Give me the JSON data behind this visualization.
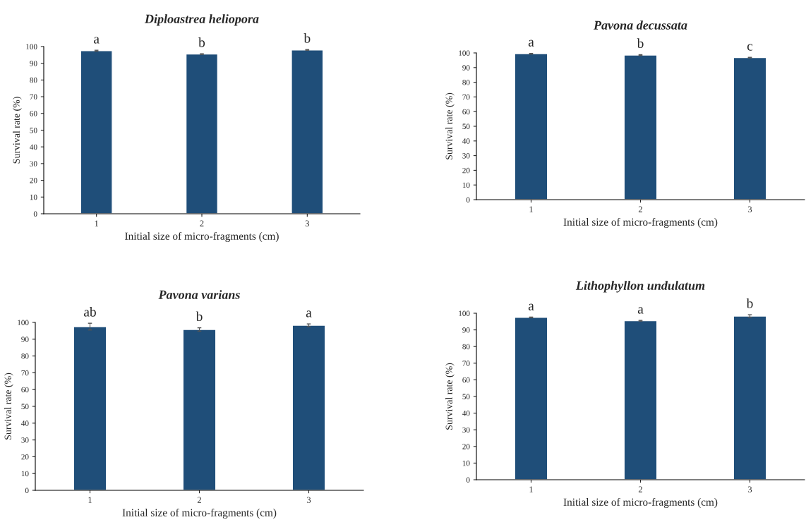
{
  "chart_data": [
    {
      "type": "bar",
      "title": "Diploastrea heliopora",
      "xlabel": "Initial size of micro-fragments (cm)",
      "ylabel": "Survival rate (%)",
      "categories": [
        "1",
        "2",
        "3"
      ],
      "values": [
        97.5,
        95.5,
        98
      ],
      "errors": [
        0.3,
        0.2,
        0.2
      ],
      "color": "#1f4e79",
      "ylim": [
        0,
        100
      ],
      "yticks": [
        0,
        10,
        20,
        30,
        40,
        50,
        60,
        70,
        80,
        90,
        100
      ],
      "grid": false,
      "legend": false,
      "annotations": [
        {
          "text": "a",
          "x": "1",
          "y": 97.5
        },
        {
          "text": "b",
          "x": "2",
          "y": 95.5
        },
        {
          "text": "b",
          "x": "3",
          "y": 98
        }
      ]
    },
    {
      "type": "bar",
      "title": "Pavona decussata",
      "xlabel": "Initial size of micro-fragments (cm)",
      "ylabel": "Survival rate (%)",
      "categories": [
        "1",
        "2",
        "3"
      ],
      "values": [
        99.5,
        98.5,
        96.8
      ],
      "errors": [
        0.3,
        0.3,
        0.2
      ],
      "color": "#1f4e79",
      "ylim": [
        0,
        100
      ],
      "yticks": [
        0,
        10,
        20,
        30,
        40,
        50,
        60,
        70,
        80,
        90,
        100
      ],
      "grid": false,
      "legend": false,
      "annotations": [
        {
          "text": "a",
          "x": "1",
          "y": 99.5
        },
        {
          "text": "b",
          "x": "2",
          "y": 98.5
        },
        {
          "text": "c",
          "x": "3",
          "y": 96.8
        }
      ]
    },
    {
      "type": "bar",
      "title": "Pavona varians",
      "xlabel": "Initial size of micro-fragments (cm)",
      "ylabel": "Survival rate (%)",
      "categories": [
        "1",
        "2",
        "3"
      ],
      "values": [
        97.5,
        95.8,
        98.3
      ],
      "errors": [
        2,
        1,
        0.8
      ],
      "color": "#1f4e79",
      "ylim": [
        0,
        100
      ],
      "yticks": [
        0,
        10,
        20,
        30,
        40,
        50,
        60,
        70,
        80,
        90,
        100
      ],
      "grid": false,
      "legend": false,
      "annotations": [
        {
          "text": "ab",
          "x": "1",
          "y": 97.5
        },
        {
          "text": "b",
          "x": "2",
          "y": 95.8
        },
        {
          "text": "a",
          "x": "3",
          "y": 98.3
        }
      ]
    },
    {
      "type": "bar",
      "title": "Lithophyllon undulatum",
      "xlabel": "Initial size of micro-fragments (cm)",
      "ylabel": "Survival rate (%)",
      "categories": [
        "1",
        "2",
        "3"
      ],
      "values": [
        97.5,
        95.5,
        98.3
      ],
      "errors": [
        0.2,
        0.2,
        0.8
      ],
      "color": "#1f4e79",
      "ylim": [
        0,
        100
      ],
      "yticks": [
        0,
        10,
        20,
        30,
        40,
        50,
        60,
        70,
        80,
        90,
        100
      ],
      "grid": false,
      "legend": false,
      "annotations": [
        {
          "text": "a",
          "x": "1",
          "y": 97.5
        },
        {
          "text": "a",
          "x": "2",
          "y": 95.5
        },
        {
          "text": "b",
          "x": "3",
          "y": 98.3
        }
      ]
    }
  ]
}
